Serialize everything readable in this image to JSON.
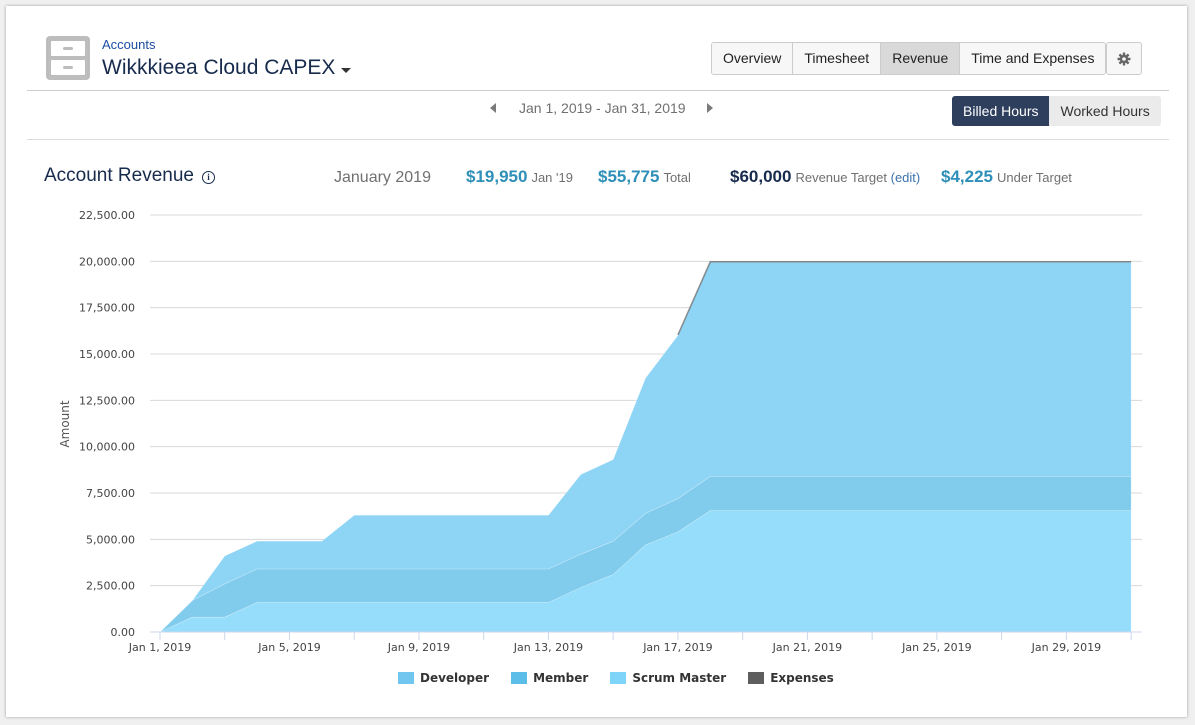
{
  "header": {
    "breadcrumb": "Accounts",
    "title": "Wikkkieea Cloud CAPEX",
    "icon": "filing-cabinet-icon"
  },
  "tabs": [
    {
      "label": "Overview",
      "active": false
    },
    {
      "label": "Timesheet",
      "active": false
    },
    {
      "label": "Revenue",
      "active": true
    },
    {
      "label": "Time and Expenses",
      "active": false
    }
  ],
  "settings_icon": "gear-icon",
  "date_range": "Jan 1, 2019 - Jan 31, 2019",
  "hours_toggle": {
    "billed": "Billed Hours",
    "worked": "Worked Hours",
    "selected": "Billed Hours"
  },
  "section": {
    "title": "Account Revenue",
    "month": "January 2019",
    "month_value": "$19,950",
    "month_label": "Jan '19",
    "total_value": "$55,775",
    "total_label": "Total",
    "target_value": "$60,000",
    "target_label": "Revenue Target",
    "edit_label": "(edit)",
    "under_value": "$4,225",
    "under_label": "Under Target"
  },
  "colors": {
    "developer": "#8dd4f5",
    "member": "#81cbed",
    "scrum_master": "#95ddfb",
    "expenses": "#606060",
    "accent": "#2e8fb8",
    "nav_dark": "#2e3f5e"
  },
  "chart_data": {
    "type": "area",
    "stacked": true,
    "title": "Account Revenue",
    "xlabel": "",
    "ylabel": "Amount",
    "ylim": [
      0,
      22500
    ],
    "yticks": [
      "0.00",
      "2,500.00",
      "5,000.00",
      "7,500.00",
      "10,000.00",
      "12,500.00",
      "15,000.00",
      "17,500.00",
      "20,000.00",
      "22,500.00"
    ],
    "xtick_labels": [
      "Jan 1, 2019",
      "Jan 5, 2019",
      "Jan 9, 2019",
      "Jan 13, 2019",
      "Jan 17, 2019",
      "Jan 21, 2019",
      "Jan 25, 2019",
      "Jan 29, 2019"
    ],
    "x": [
      1,
      2,
      3,
      4,
      5,
      6,
      7,
      8,
      9,
      10,
      11,
      12,
      13,
      14,
      15,
      16,
      17,
      18,
      19,
      20,
      21,
      22,
      23,
      24,
      25,
      26,
      27,
      28,
      29,
      30,
      31
    ],
    "series": [
      {
        "name": "Scrum Master",
        "values": [
          0,
          800,
          800,
          1600,
          1600,
          1600,
          1600,
          1600,
          1600,
          1600,
          1600,
          1600,
          1600,
          2400,
          3100,
          4700,
          5400,
          6550,
          6550,
          6550,
          6550,
          6550,
          6550,
          6550,
          6550,
          6550,
          6550,
          6550,
          6550,
          6550,
          6550
        ]
      },
      {
        "name": "Member",
        "values": [
          0,
          900,
          1800,
          1800,
          1800,
          1800,
          1800,
          1800,
          1800,
          1800,
          1800,
          1800,
          1800,
          1800,
          1800,
          1700,
          1800,
          1850,
          1850,
          1850,
          1850,
          1850,
          1850,
          1850,
          1850,
          1850,
          1850,
          1850,
          1850,
          1850,
          1850
        ]
      },
      {
        "name": "Developer",
        "values": [
          0,
          0,
          1500,
          1500,
          1500,
          1500,
          2900,
          2900,
          2900,
          2900,
          2900,
          2900,
          2900,
          4300,
          4400,
          7300,
          8800,
          11550,
          11550,
          11550,
          11550,
          11550,
          11550,
          11550,
          11550,
          11550,
          11550,
          11550,
          11550,
          11550,
          11550
        ]
      },
      {
        "name": "Expenses",
        "values": [
          0,
          0,
          0,
          0,
          0,
          0,
          0,
          0,
          0,
          0,
          0,
          0,
          0,
          0,
          0,
          0,
          0,
          0,
          0,
          0,
          0,
          0,
          0,
          0,
          0,
          0,
          0,
          0,
          0,
          0,
          0
        ]
      }
    ],
    "legend": [
      "Developer",
      "Member",
      "Scrum Master",
      "Expenses"
    ],
    "legend_position": "bottom",
    "grid": true
  }
}
